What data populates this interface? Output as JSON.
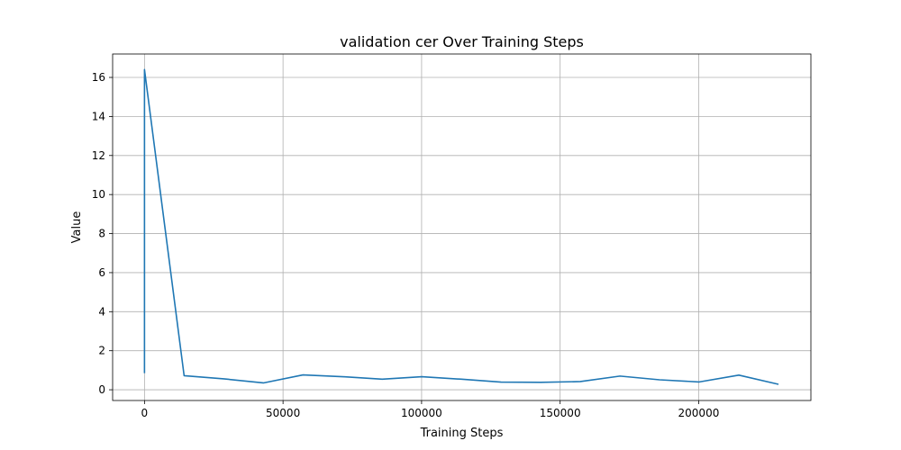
{
  "chart_data": {
    "type": "line",
    "title": "validation cer Over Training Steps",
    "xlabel": "Training Steps",
    "ylabel": "Value",
    "xlim": [
      -11500,
      240500
    ],
    "ylim": [
      -0.55,
      17.2
    ],
    "xticks": [
      0,
      50000,
      100000,
      150000,
      200000
    ],
    "xtick_labels": [
      "0",
      "50000",
      "100000",
      "150000",
      "200000"
    ],
    "yticks": [
      0,
      2,
      4,
      6,
      8,
      10,
      12,
      14,
      16
    ],
    "ytick_labels": [
      "0",
      "2",
      "4",
      "6",
      "8",
      "10",
      "12",
      "14",
      "16"
    ],
    "grid": true,
    "line_color": "#1f77b4",
    "series": [
      {
        "x": [
          0,
          0,
          14300,
          28600,
          42900,
          57200,
          71500,
          85800,
          100100,
          114400,
          128700,
          143000,
          157300,
          171600,
          185900,
          200200,
          214500,
          228800
        ],
        "y": [
          0.85,
          16.4,
          0.72,
          0.56,
          0.35,
          0.76,
          0.67,
          0.54,
          0.67,
          0.54,
          0.39,
          0.38,
          0.42,
          0.7,
          0.51,
          0.4,
          0.75,
          0.28
        ]
      }
    ]
  }
}
